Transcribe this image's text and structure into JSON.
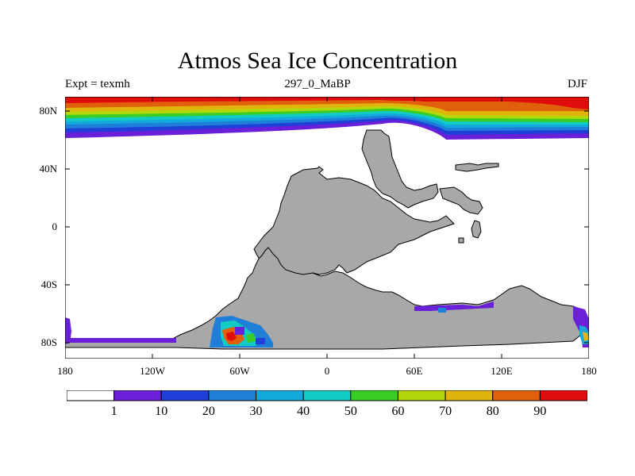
{
  "header": {
    "title": "Atmos Sea Ice Concentration",
    "expt": "Expt = texmh",
    "subtitle": "297_0_MaBP",
    "season": "DJF"
  },
  "map": {
    "land_color": "#a8a8a8",
    "ocean_color": "#ffffff",
    "lat_labels": [
      "80N",
      "40N",
      "0",
      "40S",
      "80S"
    ],
    "lon_labels": [
      "180",
      "120W",
      "60W",
      "0",
      "60E",
      "120E",
      "180"
    ]
  },
  "colorbar": {
    "colors": [
      "#ffffff",
      "#6a1fd8",
      "#1f3fd8",
      "#1f7fd8",
      "#12a9dd",
      "#12ccc4",
      "#3acd26",
      "#b2d80c",
      "#e0b40c",
      "#e0600c",
      "#e00c0c"
    ],
    "labels": [
      "1",
      "10",
      "20",
      "30",
      "40",
      "50",
      "60",
      "70",
      "80",
      "90"
    ]
  }
}
